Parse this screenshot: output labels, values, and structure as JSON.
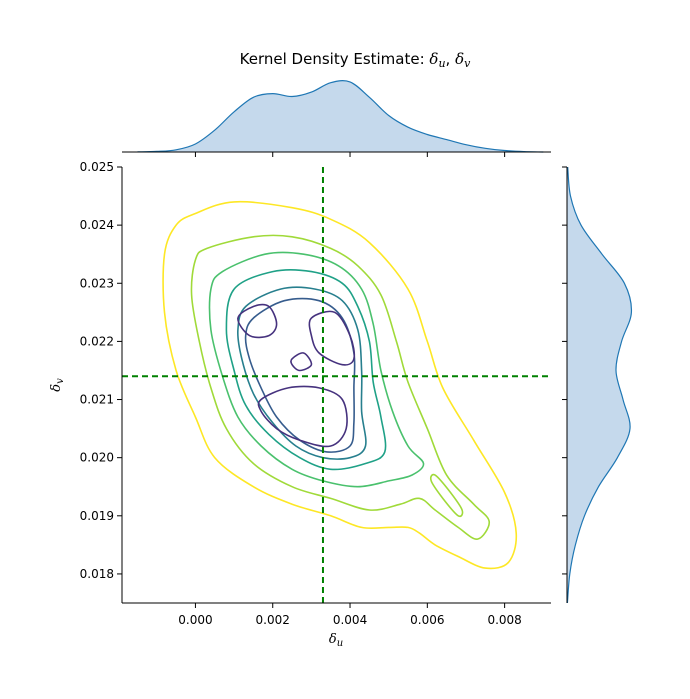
{
  "chart_data": {
    "type": "contour",
    "title": "Kernel Density Estimate: δu, δv",
    "title_parts": {
      "prefix": "Kernel Density Estimate: ",
      "u": "δ",
      "u_sub": "u",
      "sep": ", ",
      "v": "δ",
      "v_sub": "v"
    },
    "xlabel": {
      "symbol": "δ",
      "sub": "u"
    },
    "ylabel": {
      "symbol": "δ",
      "sub": "v"
    },
    "xlim": [
      -0.0019,
      0.0092
    ],
    "ylim": [
      0.0175,
      0.025
    ],
    "xticks": [
      0.0,
      0.002,
      0.004,
      0.006,
      0.008
    ],
    "xtick_labels": [
      "0.000",
      "0.002",
      "0.004",
      "0.006",
      "0.008"
    ],
    "yticks": [
      0.018,
      0.019,
      0.02,
      0.021,
      0.022,
      0.023,
      0.024,
      0.025
    ],
    "ytick_labels": [
      "0.018",
      "0.019",
      "0.020",
      "0.021",
      "0.022",
      "0.023",
      "0.024",
      "0.025"
    ],
    "reference_lines": {
      "x": 0.0033,
      "y": 0.0214,
      "color": "#008000",
      "style": "dashed"
    },
    "colormap": "viridis",
    "contours": [
      {
        "level": 1,
        "color": "#fde725",
        "loops": [
          [
            [
              0.0,
              0.0242
            ],
            [
              0.001,
              0.0244
            ],
            [
              0.0025,
              0.0243
            ],
            [
              0.0035,
              0.0241
            ],
            [
              0.0045,
              0.0237
            ],
            [
              0.0055,
              0.0229
            ],
            [
              0.006,
              0.022
            ],
            [
              0.0064,
              0.0212
            ],
            [
              0.0072,
              0.0203
            ],
            [
              0.008,
              0.0194
            ],
            [
              0.0083,
              0.0187
            ],
            [
              0.0081,
              0.0182
            ],
            [
              0.0075,
              0.0181
            ],
            [
              0.0068,
              0.0183
            ],
            [
              0.0062,
              0.0185
            ],
            [
              0.0058,
              0.0187
            ],
            [
              0.0055,
              0.0188
            ],
            [
              0.005,
              0.0188
            ],
            [
              0.0043,
              0.0188
            ],
            [
              0.0035,
              0.019
            ],
            [
              0.0025,
              0.0192
            ],
            [
              0.0015,
              0.0195
            ],
            [
              0.0005,
              0.02
            ],
            [
              0.0,
              0.0207
            ],
            [
              -0.0005,
              0.0215
            ],
            [
              -0.0008,
              0.0225
            ],
            [
              -0.0008,
              0.0235
            ],
            [
              -0.0005,
              0.024
            ]
          ]
        ]
      },
      {
        "level": 2,
        "color": "#a0da39",
        "loops": [
          [
            [
              0.0003,
              0.0236
            ],
            [
              0.0015,
              0.0238
            ],
            [
              0.0025,
              0.0238
            ],
            [
              0.0035,
              0.0236
            ],
            [
              0.0042,
              0.0233
            ],
            [
              0.0048,
              0.0228
            ],
            [
              0.0052,
              0.022
            ],
            [
              0.0055,
              0.0213
            ],
            [
              0.006,
              0.0205
            ],
            [
              0.0065,
              0.0197
            ],
            [
              0.0072,
              0.0192
            ],
            [
              0.0076,
              0.0189
            ],
            [
              0.0073,
              0.0186
            ],
            [
              0.0068,
              0.0188
            ],
            [
              0.0062,
              0.0191
            ],
            [
              0.0058,
              0.0193
            ],
            [
              0.0053,
              0.0192
            ],
            [
              0.0045,
              0.0191
            ],
            [
              0.0035,
              0.0193
            ],
            [
              0.0025,
              0.0195
            ],
            [
              0.0015,
              0.0199
            ],
            [
              0.0008,
              0.0205
            ],
            [
              0.0004,
              0.0212
            ],
            [
              0.0001,
              0.022
            ],
            [
              -0.0001,
              0.0228
            ],
            [
              0.0,
              0.0234
            ]
          ],
          [
            [
              0.0062,
              0.0197
            ],
            [
              0.0066,
              0.0194
            ],
            [
              0.0069,
              0.0191
            ],
            [
              0.0068,
              0.019
            ],
            [
              0.0064,
              0.0193
            ],
            [
              0.0061,
              0.0196
            ]
          ]
        ]
      },
      {
        "level": 3,
        "color": "#4ac16d",
        "loops": [
          [
            [
              0.0007,
              0.0232
            ],
            [
              0.0018,
              0.0235
            ],
            [
              0.0028,
              0.0235
            ],
            [
              0.0037,
              0.0233
            ],
            [
              0.0043,
              0.0229
            ],
            [
              0.0046,
              0.0223
            ],
            [
              0.0048,
              0.0215
            ],
            [
              0.0051,
              0.0208
            ],
            [
              0.0055,
              0.0202
            ],
            [
              0.0059,
              0.0199
            ],
            [
              0.0056,
              0.0197
            ],
            [
              0.005,
              0.0196
            ],
            [
              0.0042,
              0.0195
            ],
            [
              0.0033,
              0.0196
            ],
            [
              0.0025,
              0.0198
            ],
            [
              0.0017,
              0.0202
            ],
            [
              0.0011,
              0.0207
            ],
            [
              0.0007,
              0.0214
            ],
            [
              0.0004,
              0.0222
            ],
            [
              0.0004,
              0.0229
            ]
          ]
        ]
      },
      {
        "level": 4,
        "color": "#1fa187",
        "loops": [
          [
            [
              0.001,
              0.0229
            ],
            [
              0.002,
              0.0232
            ],
            [
              0.003,
              0.0232
            ],
            [
              0.0038,
              0.023
            ],
            [
              0.0042,
              0.0226
            ],
            [
              0.0045,
              0.022
            ],
            [
              0.0046,
              0.0213
            ],
            [
              0.0048,
              0.0207
            ],
            [
              0.0049,
              0.0201
            ],
            [
              0.0044,
              0.0199
            ],
            [
              0.0035,
              0.0198
            ],
            [
              0.0027,
              0.02
            ],
            [
              0.0019,
              0.0204
            ],
            [
              0.0013,
              0.0209
            ],
            [
              0.001,
              0.0215
            ],
            [
              0.0008,
              0.0222
            ]
          ]
        ]
      },
      {
        "level": 5,
        "color": "#277f8e",
        "loops": [
          [
            [
              0.0013,
              0.0226
            ],
            [
              0.0022,
              0.0229
            ],
            [
              0.0031,
              0.0229
            ],
            [
              0.0038,
              0.0227
            ],
            [
              0.0042,
              0.0222
            ],
            [
              0.0043,
              0.0215
            ],
            [
              0.0043,
              0.0208
            ],
            [
              0.0044,
              0.0202
            ],
            [
              0.004,
              0.02
            ],
            [
              0.0033,
              0.02
            ],
            [
              0.0026,
              0.0202
            ],
            [
              0.002,
              0.0206
            ],
            [
              0.0015,
              0.0211
            ],
            [
              0.0012,
              0.0217
            ],
            [
              0.0011,
              0.0222
            ]
          ]
        ]
      },
      {
        "level": 6,
        "color": "#365c8d",
        "loops": [
          [
            [
              0.0015,
              0.0224
            ],
            [
              0.0023,
              0.0227
            ],
            [
              0.0032,
              0.0227
            ],
            [
              0.0038,
              0.0224
            ],
            [
              0.0041,
              0.0218
            ],
            [
              0.0041,
              0.0212
            ],
            [
              0.0041,
              0.0206
            ],
            [
              0.004,
              0.0202
            ],
            [
              0.0034,
              0.0201
            ],
            [
              0.0027,
              0.0203
            ],
            [
              0.0021,
              0.0207
            ],
            [
              0.0017,
              0.0212
            ],
            [
              0.0014,
              0.0217
            ],
            [
              0.0013,
              0.0221
            ]
          ]
        ]
      },
      {
        "level": 7,
        "color": "#46327e",
        "loops": [
          [
            [
              0.0011,
              0.0224
            ],
            [
              0.0015,
              0.0226
            ],
            [
              0.0019,
              0.0226
            ],
            [
              0.0021,
              0.0223
            ],
            [
              0.0019,
              0.0221
            ],
            [
              0.0014,
              0.0221
            ]
          ],
          [
            [
              0.003,
              0.0224
            ],
            [
              0.0036,
              0.0225
            ],
            [
              0.004,
              0.0221
            ],
            [
              0.0041,
              0.0217
            ],
            [
              0.0038,
              0.0216
            ],
            [
              0.0032,
              0.0218
            ],
            [
              0.003,
              0.0221
            ]
          ],
          [
            [
              0.0017,
              0.021
            ],
            [
              0.0024,
              0.0212
            ],
            [
              0.0032,
              0.0212
            ],
            [
              0.0038,
              0.021
            ],
            [
              0.0039,
              0.0205
            ],
            [
              0.0035,
              0.0202
            ],
            [
              0.0027,
              0.0203
            ],
            [
              0.0021,
              0.0205
            ],
            [
              0.0017,
              0.0208
            ]
          ],
          [
            [
              0.0025,
              0.0217
            ],
            [
              0.0028,
              0.0218
            ],
            [
              0.003,
              0.0216
            ],
            [
              0.0027,
              0.0215
            ],
            [
              0.0025,
              0.0216
            ]
          ]
        ]
      }
    ],
    "marginal_x": {
      "fill": "#c5d9ec",
      "line": "#1f77b4",
      "x": [
        -0.0015,
        -0.001,
        -0.0005,
        0.0,
        0.0005,
        0.001,
        0.0015,
        0.002,
        0.0025,
        0.003,
        0.0035,
        0.004,
        0.0045,
        0.005,
        0.0055,
        0.006,
        0.0065,
        0.007,
        0.0075,
        0.008,
        0.0085,
        0.009
      ],
      "density": [
        0.002,
        0.008,
        0.03,
        0.11,
        0.3,
        0.55,
        0.75,
        0.8,
        0.76,
        0.82,
        0.95,
        0.96,
        0.75,
        0.5,
        0.34,
        0.24,
        0.17,
        0.1,
        0.05,
        0.02,
        0.005,
        0.0
      ]
    },
    "marginal_y": {
      "fill": "#c5d9ec",
      "line": "#1f77b4",
      "y": [
        0.0175,
        0.018,
        0.0185,
        0.019,
        0.0195,
        0.02,
        0.0205,
        0.021,
        0.0215,
        0.022,
        0.0225,
        0.023,
        0.0235,
        0.024,
        0.0245,
        0.025
      ],
      "density": [
        0.005,
        0.04,
        0.12,
        0.25,
        0.45,
        0.72,
        0.9,
        0.8,
        0.7,
        0.78,
        0.92,
        0.82,
        0.5,
        0.2,
        0.05,
        0.01
      ]
    }
  }
}
